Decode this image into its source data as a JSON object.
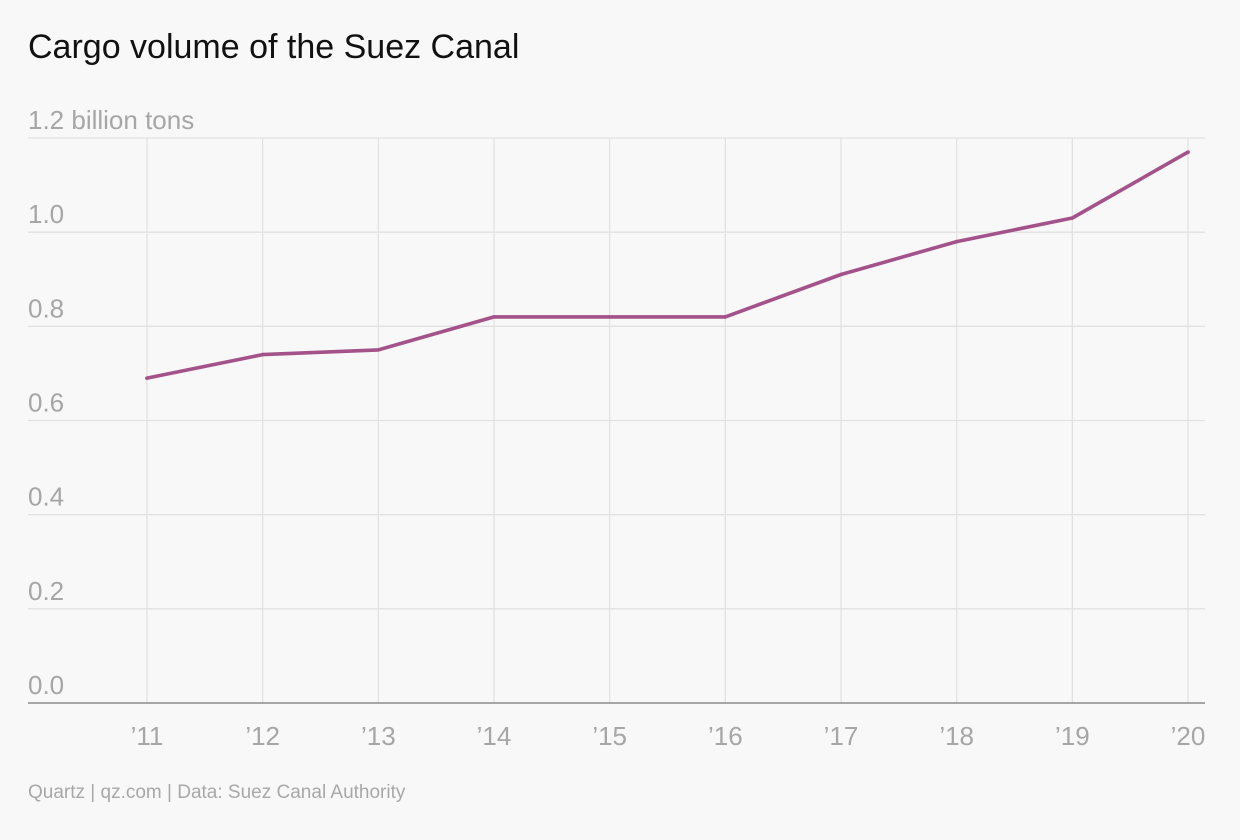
{
  "chart_data": {
    "type": "line",
    "title": "Cargo volume of the Suez Canal",
    "y_unit_label": "1.2 billion tons",
    "xlabel": "",
    "ylabel": "",
    "categories": [
      "’11",
      "’12",
      "’13",
      "’14",
      "’15",
      "’16",
      "’17",
      "’18",
      "’19",
      "’20"
    ],
    "series": [
      {
        "values": [
          0.69,
          0.74,
          0.75,
          0.82,
          0.82,
          0.82,
          0.91,
          0.98,
          1.03,
          1.17
        ],
        "color": "#a3528a"
      }
    ],
    "ylim": [
      0,
      1.2
    ],
    "yticks": [
      "0.0",
      "0.2",
      "0.4",
      "0.6",
      "0.8",
      "1.0"
    ],
    "grid": true,
    "legend": "none"
  },
  "footer": {
    "source": "Quartz | qz.com | Data: Suez Canal Authority"
  },
  "colors": {
    "background": "#f8f8f8",
    "grid": "#e2e2e2",
    "axis": "#8a8a8a",
    "line": "#a3528a",
    "label": "#a6a6a6"
  }
}
